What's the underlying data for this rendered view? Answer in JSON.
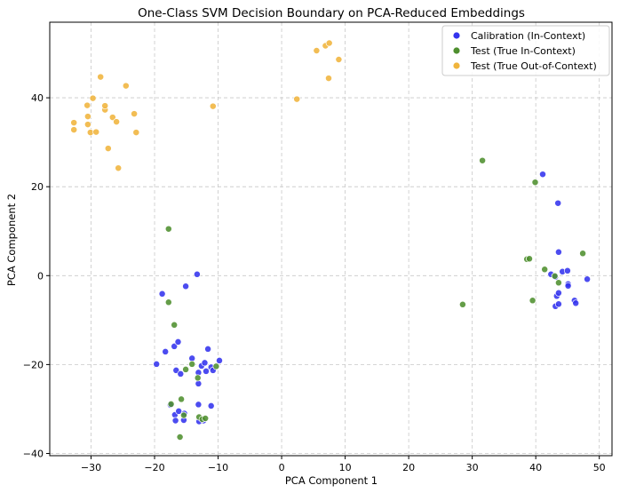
{
  "chart_data": {
    "type": "scatter",
    "title": "One-Class SVM Decision Boundary on PCA-Reduced Embeddings",
    "xlabel": "PCA Component 1",
    "ylabel": "PCA Component 2",
    "xlim": [
      -36.5,
      52
    ],
    "ylim": [
      -40.5,
      57
    ],
    "xticks": [
      -30,
      -20,
      -10,
      0,
      10,
      20,
      30,
      40,
      50
    ],
    "yticks": [
      -40,
      -20,
      0,
      20,
      40
    ],
    "grid": true,
    "legend_position": "top-right",
    "series": [
      {
        "name": "Calibration (In-Context)",
        "color": "#3333ee",
        "points": [
          [
            -18.8,
            -4.1
          ],
          [
            -15.1,
            -2.4
          ],
          [
            -13.3,
            0.3
          ],
          [
            -18.3,
            -17.1
          ],
          [
            -16.9,
            -15.9
          ],
          [
            -16.3,
            -14.9
          ],
          [
            -19.7,
            -19.9
          ],
          [
            -14.1,
            -18.6
          ],
          [
            -16.6,
            -21.3
          ],
          [
            -15.9,
            -22.1
          ],
          [
            -13.1,
            -24.3
          ],
          [
            -13.1,
            -21.8
          ],
          [
            -12.6,
            -20.3
          ],
          [
            -12.1,
            -19.6
          ],
          [
            -11.6,
            -16.5
          ],
          [
            -11.1,
            -20.6
          ],
          [
            -11.9,
            -21.5
          ],
          [
            -10.8,
            -21.3
          ],
          [
            -9.8,
            -19.1
          ],
          [
            -17.5,
            -29.1
          ],
          [
            -16.8,
            -31.3
          ],
          [
            -16.2,
            -30.5
          ],
          [
            -15.3,
            -31.0
          ],
          [
            -16.7,
            -32.6
          ],
          [
            -15.4,
            -32.5
          ],
          [
            -13.1,
            -29.0
          ],
          [
            -11.1,
            -29.3
          ],
          [
            -12.3,
            -32.6
          ],
          [
            -13.0,
            -32.8
          ],
          [
            41.1,
            22.8
          ],
          [
            43.5,
            16.3
          ],
          [
            43.6,
            5.3
          ],
          [
            44.2,
            0.9
          ],
          [
            45.0,
            1.1
          ],
          [
            42.4,
            0.3
          ],
          [
            43.1,
            -0.3
          ],
          [
            45.1,
            -1.9
          ],
          [
            45.1,
            -2.3
          ],
          [
            43.3,
            -4.6
          ],
          [
            43.6,
            -3.9
          ],
          [
            46.1,
            -5.6
          ],
          [
            46.3,
            -6.2
          ],
          [
            43.1,
            -6.9
          ],
          [
            43.6,
            -6.4
          ],
          [
            48.1,
            -0.8
          ]
        ]
      },
      {
        "name": "Test (True In-Context)",
        "color": "#4e8f2f",
        "points": [
          [
            -17.8,
            10.5
          ],
          [
            -17.8,
            -6.0
          ],
          [
            -16.9,
            -11.1
          ],
          [
            -14.1,
            -19.9
          ],
          [
            -13.2,
            -23.0
          ],
          [
            -10.3,
            -20.4
          ],
          [
            -15.1,
            -21.1
          ],
          [
            -17.4,
            -28.9
          ],
          [
            -15.8,
            -27.8
          ],
          [
            -15.4,
            -31.4
          ],
          [
            -13.0,
            -31.8
          ],
          [
            -12.5,
            -32.3
          ],
          [
            -12.0,
            -32.1
          ],
          [
            -16.0,
            -36.3
          ],
          [
            28.5,
            -6.5
          ],
          [
            31.6,
            25.9
          ],
          [
            39.9,
            21.0
          ],
          [
            38.6,
            3.7
          ],
          [
            39.0,
            3.8
          ],
          [
            41.4,
            1.4
          ],
          [
            43.0,
            -0.1
          ],
          [
            43.6,
            -1.6
          ],
          [
            39.5,
            -5.6
          ],
          [
            47.4,
            5.0
          ]
        ]
      },
      {
        "name": "Test (True Out-of-Context)",
        "color": "#f0b43c",
        "points": [
          [
            -32.7,
            34.4
          ],
          [
            -32.7,
            32.8
          ],
          [
            -30.6,
            38.3
          ],
          [
            -30.5,
            35.8
          ],
          [
            -30.5,
            34.0
          ],
          [
            -30.1,
            32.2
          ],
          [
            -29.7,
            39.9
          ],
          [
            -29.2,
            32.3
          ],
          [
            -28.5,
            44.7
          ],
          [
            -27.8,
            37.3
          ],
          [
            -27.8,
            38.2
          ],
          [
            -27.3,
            28.6
          ],
          [
            -26.6,
            35.6
          ],
          [
            -26.0,
            34.6
          ],
          [
            -25.7,
            24.2
          ],
          [
            -24.5,
            42.7
          ],
          [
            -23.2,
            36.4
          ],
          [
            -22.9,
            32.2
          ],
          [
            -10.8,
            38.1
          ],
          [
            2.4,
            39.7
          ],
          [
            5.5,
            50.6
          ],
          [
            6.9,
            51.7
          ],
          [
            7.5,
            52.3
          ],
          [
            7.4,
            44.4
          ],
          [
            9.0,
            48.6
          ]
        ]
      }
    ]
  }
}
